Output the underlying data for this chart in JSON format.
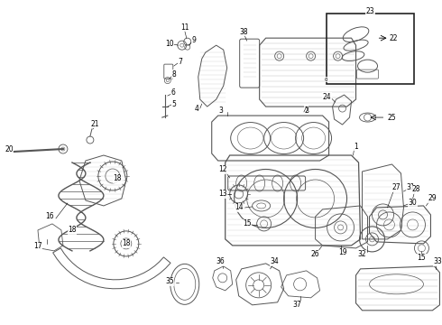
{
  "background_color": "#ffffff",
  "figsize": [
    4.9,
    3.6
  ],
  "dpi": 100,
  "gray": "#555555",
  "dgray": "#222222",
  "lgray": "#888888"
}
